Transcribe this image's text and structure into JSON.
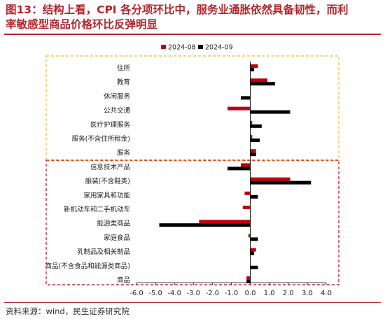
{
  "title": {
    "line1": "图13：结构上看，CPI 各分项环比中，服务业通胀依然具备韧性，而利",
    "line2": "率敏感型商品价格环比反弹明显"
  },
  "source": {
    "label": "资料来源：",
    "text": "wind，民生证券研究院"
  },
  "colors": {
    "accent": "#b2262c",
    "series_2024_08": "#c0000b",
    "series_2024_09": "#000000",
    "services_box": "#e6b830",
    "goods_box": "#c0000b"
  },
  "chart_data": {
    "type": "bar",
    "orientation": "horizontal",
    "categories": [
      "住所",
      "教育",
      "休闲服务",
      "公共交通",
      "医疗护理服务",
      "服务(不含住所租金)",
      "服务",
      "信息技术产品",
      "服装(不含鞋类)",
      "家用家具和功能",
      "新机动车和二手机动车",
      "能源类商品",
      "家庭食品",
      "乳制品及相关制品",
      "商品(不含食品和能源类商品)",
      "商品"
    ],
    "series": [
      {
        "name": "2024-08",
        "values": [
          0.4,
          0.9,
          0.0,
          -1.2,
          0.1,
          0.1,
          0.3,
          -0.5,
          2.1,
          -0.3,
          -0.4,
          -2.7,
          -0.1,
          0.3,
          0.0,
          -0.2
        ]
      },
      {
        "name": "2024-09",
        "values": [
          0.2,
          1.3,
          -0.5,
          2.1,
          0.6,
          0.5,
          0.3,
          -1.2,
          3.2,
          0.4,
          0.0,
          -4.8,
          0.4,
          0.2,
          0.4,
          -0.2
        ]
      }
    ],
    "xlim": [
      -6.0,
      4.0
    ],
    "xticks": [
      "-6.0",
      "-5.0",
      "-4.0",
      "-3.0",
      "-2.0",
      "-1.0",
      "0.0",
      "1.0",
      "2.0",
      "3.0",
      "4.0"
    ],
    "legend_position": "top-center",
    "grid": false,
    "groups": [
      {
        "name": "services",
        "from": 0,
        "to": 6,
        "style": "dashed",
        "color": "#e6b830"
      },
      {
        "name": "goods",
        "from": 7,
        "to": 15,
        "style": "dashed",
        "color": "#c0000b"
      }
    ]
  }
}
